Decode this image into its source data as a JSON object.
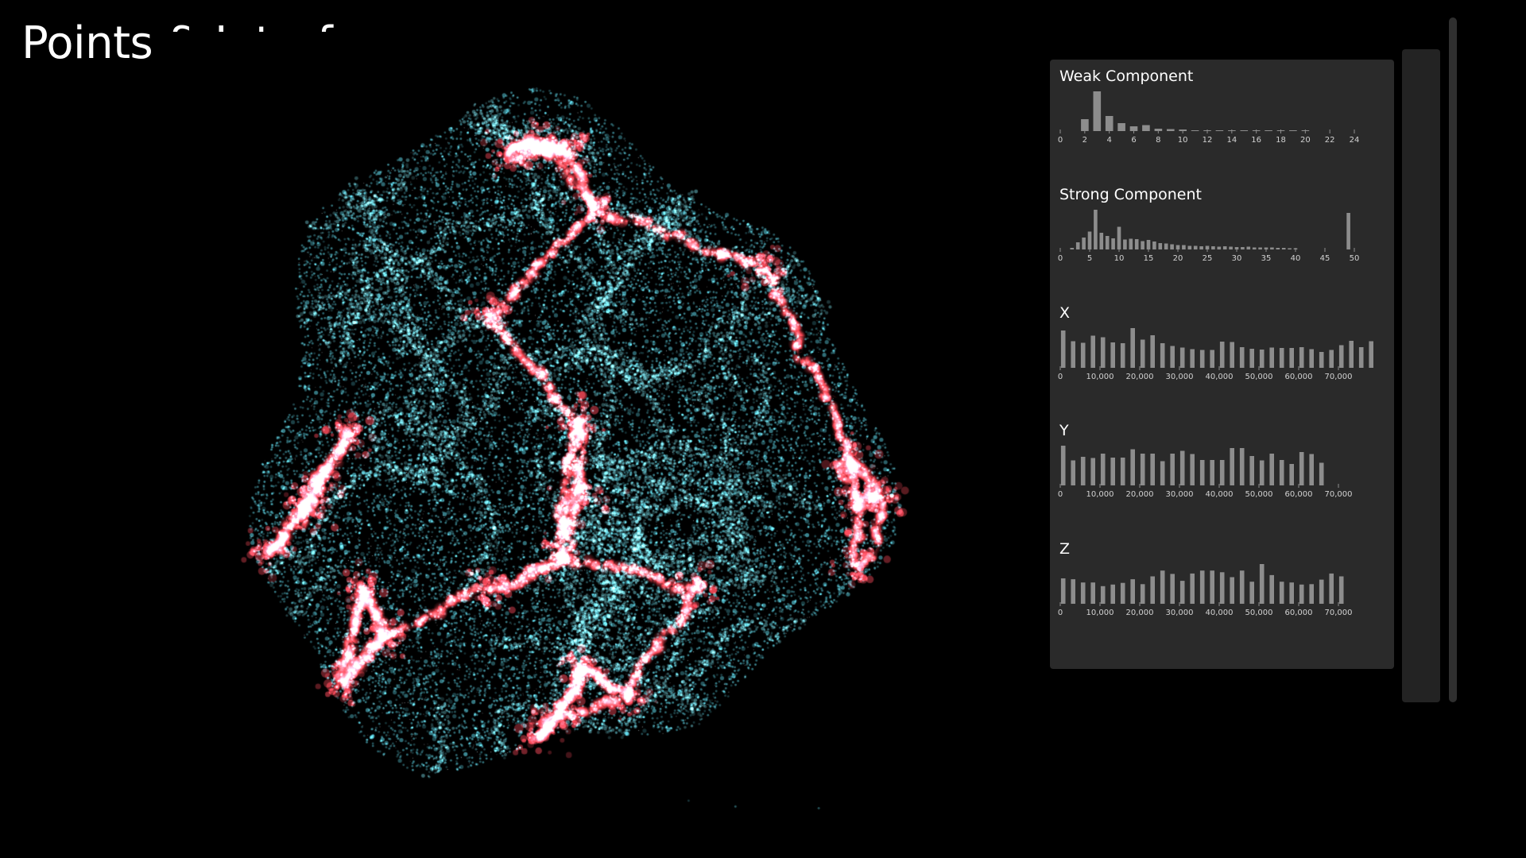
{
  "title": "Points & Interface",
  "visualization": {
    "type": "3d-point-cloud",
    "description_colors": {
      "background": "#000000",
      "component_points": "#e8404c",
      "other_points": "#4fb3c2"
    }
  },
  "colors": {
    "panel_bg": "#2a2a2a",
    "bar": "#8d8d8d",
    "tick_text": "#d2d2d2",
    "red_points": "#e8404c",
    "cyan_points": "#4fb3c2"
  },
  "chart_data": [
    {
      "type": "bar",
      "title": "Weak Component",
      "xlim": [
        0,
        24
      ],
      "tick_labels": [
        "0",
        "2",
        "4",
        "6",
        "8",
        "10",
        "12",
        "14",
        "16",
        "18",
        "20",
        "22",
        "24"
      ],
      "tick_values": [
        0,
        2,
        4,
        6,
        8,
        10,
        12,
        14,
        16,
        18,
        20,
        22,
        24
      ],
      "x": [
        2,
        3,
        4,
        5,
        6,
        7,
        8,
        9,
        10,
        11,
        12,
        13,
        14,
        15,
        16,
        17,
        18,
        19,
        20
      ],
      "values": [
        30,
        100,
        38,
        20,
        12,
        15,
        6,
        5,
        4,
        2,
        2,
        1,
        1,
        1,
        1,
        1,
        1,
        1,
        1
      ]
    },
    {
      "type": "bar",
      "title": "Strong Component",
      "xlim": [
        0,
        50
      ],
      "tick_labels": [
        "0",
        "5",
        "10",
        "15",
        "20",
        "25",
        "30",
        "35",
        "40",
        "45",
        "50"
      ],
      "tick_values": [
        0,
        5,
        10,
        15,
        20,
        25,
        30,
        35,
        40,
        45,
        50
      ],
      "x": [
        2,
        3,
        4,
        5,
        6,
        7,
        8,
        9,
        10,
        11,
        12,
        13,
        14,
        15,
        16,
        17,
        18,
        19,
        20,
        21,
        22,
        23,
        24,
        25,
        26,
        27,
        28,
        29,
        30,
        31,
        32,
        33,
        34,
        35,
        36,
        37,
        38,
        39,
        40,
        49
      ],
      "values": [
        4,
        18,
        30,
        45,
        100,
        42,
        34,
        28,
        57,
        25,
        27,
        26,
        21,
        24,
        20,
        16,
        15,
        13,
        11,
        11,
        9,
        9,
        8,
        9,
        8,
        7,
        8,
        7,
        6,
        6,
        7,
        5,
        5,
        5,
        5,
        4,
        4,
        3,
        3,
        92
      ]
    },
    {
      "type": "bar",
      "title": "X",
      "xlim": [
        0,
        74000
      ],
      "tick_labels": [
        "0",
        "10,000",
        "20,000",
        "30,000",
        "40,000",
        "50,000",
        "60,000",
        "70,000"
      ],
      "tick_values": [
        0,
        10000,
        20000,
        30000,
        40000,
        50000,
        60000,
        70000
      ],
      "bin_width": 2500,
      "values": [
        94,
        67,
        63,
        81,
        77,
        64,
        62,
        100,
        71,
        82,
        62,
        55,
        51,
        47,
        45,
        45,
        66,
        65,
        52,
        48,
        46,
        51,
        50,
        50,
        52,
        47,
        40,
        45,
        57,
        68,
        52,
        67
      ]
    },
    {
      "type": "bar",
      "title": "Y",
      "xlim": [
        0,
        74000
      ],
      "tick_labels": [
        "0",
        "10,000",
        "20,000",
        "30,000",
        "40,000",
        "50,000",
        "60,000",
        "70,000"
      ],
      "tick_values": [
        0,
        10000,
        20000,
        30000,
        40000,
        50000,
        60000,
        70000
      ],
      "bin_width": 2500,
      "values": [
        100,
        63,
        72,
        69,
        80,
        70,
        70,
        91,
        80,
        80,
        61,
        80,
        87,
        79,
        64,
        64,
        64,
        94,
        94,
        74,
        63,
        80,
        64,
        54,
        84,
        79,
        57
      ]
    },
    {
      "type": "bar",
      "title": "Z",
      "xlim": [
        0,
        74000
      ],
      "tick_labels": [
        "0",
        "10,000",
        "20,000",
        "30,000",
        "40,000",
        "50,000",
        "60,000",
        "70,000"
      ],
      "tick_values": [
        0,
        10000,
        20000,
        30000,
        40000,
        50000,
        60000,
        70000
      ],
      "bin_width": 2500,
      "values": [
        62,
        60,
        52,
        52,
        43,
        47,
        51,
        60,
        48,
        67,
        81,
        73,
        56,
        74,
        81,
        81,
        77,
        65,
        81,
        54,
        97,
        70,
        54,
        52,
        47,
        48,
        59,
        74,
        67
      ]
    }
  ]
}
